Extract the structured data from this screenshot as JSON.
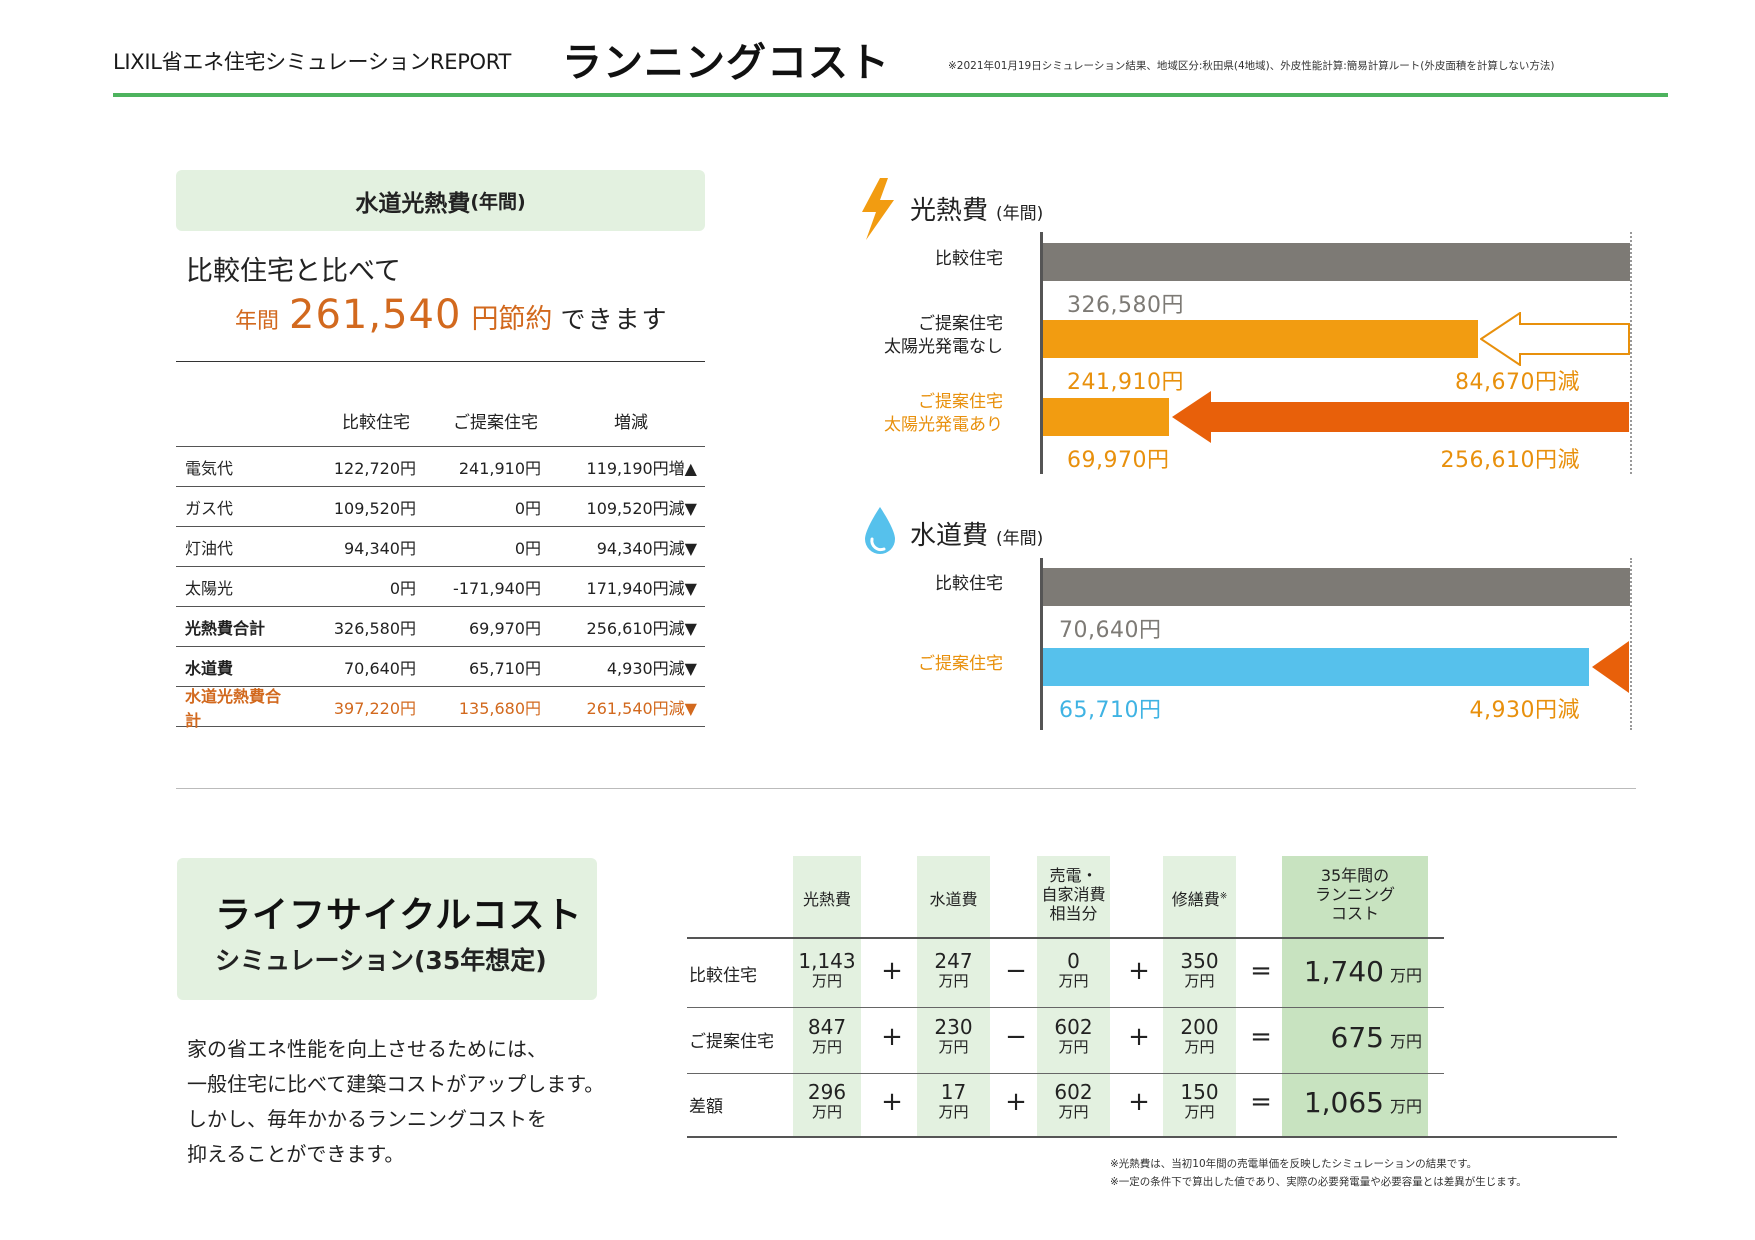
{
  "header": {
    "brand": "LIXIL省エネ住宅シミュレーションREPORT",
    "title": "ランニングコスト",
    "note": "※2021年01月19日シミュレーション結果、地域区分:秋田県(4地域)、外皮性能計算:簡易計算ルート(外皮面積を計算しない方法)"
  },
  "utility": {
    "box_title": "水道光熱費",
    "box_title_sub": "(年間)",
    "line1": "比較住宅と比べて",
    "prefix": "年間",
    "amount": "261,540",
    "suffix": "円節約",
    "tail": "できます",
    "table": {
      "headers": [
        "",
        "比較住宅",
        "ご提案住宅",
        "増減"
      ],
      "rows": [
        {
          "label": "電気代",
          "a": "122,720円",
          "b": "241,910円",
          "diff": "119,190円増▲"
        },
        {
          "label": "ガス代",
          "a": "109,520円",
          "b": "0円",
          "diff": "109,520円減▼"
        },
        {
          "label": "灯油代",
          "a": "94,340円",
          "b": "0円",
          "diff": "94,340円減▼"
        },
        {
          "label": "太陽光",
          "a": "0円",
          "b": "-171,940円",
          "diff": "171,940円減▼"
        },
        {
          "label": "光熱費合計",
          "a": "326,580円",
          "b": "69,970円",
          "diff": "256,610円減▼"
        },
        {
          "label": "水道費",
          "a": "70,640円",
          "b": "65,710円",
          "diff": "4,930円減▼"
        },
        {
          "label": "水道光熱費合計",
          "a": "397,220円",
          "b": "135,680円",
          "diff": "261,540円減▼"
        }
      ]
    }
  },
  "energy_chart": {
    "title": "光熱費",
    "title_sub": "(年間)",
    "icon": "lightning-icon",
    "rows": [
      {
        "label1": "比較住宅",
        "label2": "",
        "value": 326580,
        "value_text": "326,580円",
        "color": "#7d7a75",
        "label_color": "#222222",
        "value_color": "#7d7a75",
        "reduction": 0,
        "reduction_text": ""
      },
      {
        "label1": "ご提案住宅",
        "label2": "太陽光発電なし",
        "value": 241910,
        "value_text": "241,910円",
        "color": "#f29c11",
        "label_color": "#222222",
        "value_color": "#e8900c",
        "reduction": 84670,
        "reduction_text": "84,670円減"
      },
      {
        "label1": "ご提案住宅",
        "label2": "太陽光発電あり",
        "value": 69970,
        "value_text": "69,970円",
        "color": "#f29c11",
        "label_color": "#e8900c",
        "value_color": "#e8900c",
        "reduction": 256610,
        "reduction_text": "256,610円減"
      }
    ],
    "reduction_color": "#e8900c"
  },
  "water_chart": {
    "title": "水道費",
    "title_sub": "(年間)",
    "icon": "water-drop-icon",
    "rows": [
      {
        "label": "比較住宅",
        "value": 70640,
        "value_text": "70,640円",
        "color": "#7d7a75",
        "label_color": "#222222",
        "value_color": "#7d7a75"
      },
      {
        "label": "ご提案住宅",
        "value": 65710,
        "value_text": "65,710円",
        "color": "#56c1ec",
        "label_color": "#e8900c",
        "value_color": "#3fb3e3",
        "reduction_text": "4,930円減"
      }
    ]
  },
  "lifecycle": {
    "title1": "ライフサイクルコスト",
    "title2": "シミュレーション(35年想定)",
    "desc": [
      "家の省エネ性能を向上させるためには、",
      "一般住宅に比べて建築コストがアップします。",
      "しかし、毎年かかるランニングコストを",
      "抑えることができます。"
    ],
    "headers": {
      "energy": "光熱費",
      "water": "水道費",
      "sell": [
        "売電・",
        "自家消費",
        "相当分"
      ],
      "repair": "修繕費",
      "repair_mark": "※",
      "total": [
        "35年間の",
        "ランニング",
        "コスト"
      ]
    },
    "unit": "万円",
    "rows": [
      {
        "label": "比較住宅",
        "energy": "1,143",
        "water": "247",
        "op3": "−",
        "sell": "0",
        "repair": "350",
        "total": "1,740"
      },
      {
        "label": "ご提案住宅",
        "energy": "847",
        "water": "230",
        "op3": "−",
        "sell": "602",
        "repair": "200",
        "total": "675"
      },
      {
        "label": "差額",
        "energy": "296",
        "water": "17",
        "op3": "+",
        "sell": "602",
        "repair": "150",
        "total": "1,065"
      }
    ],
    "plus": "+",
    "equals": "=",
    "footnotes": [
      "※光熱費は、当初10年間の売電単価を反映したシミュレーションの結果です。",
      "※一定の条件下で算出した値であり、実際の必要発電量や必要容量とは差異が生じます。"
    ]
  }
}
